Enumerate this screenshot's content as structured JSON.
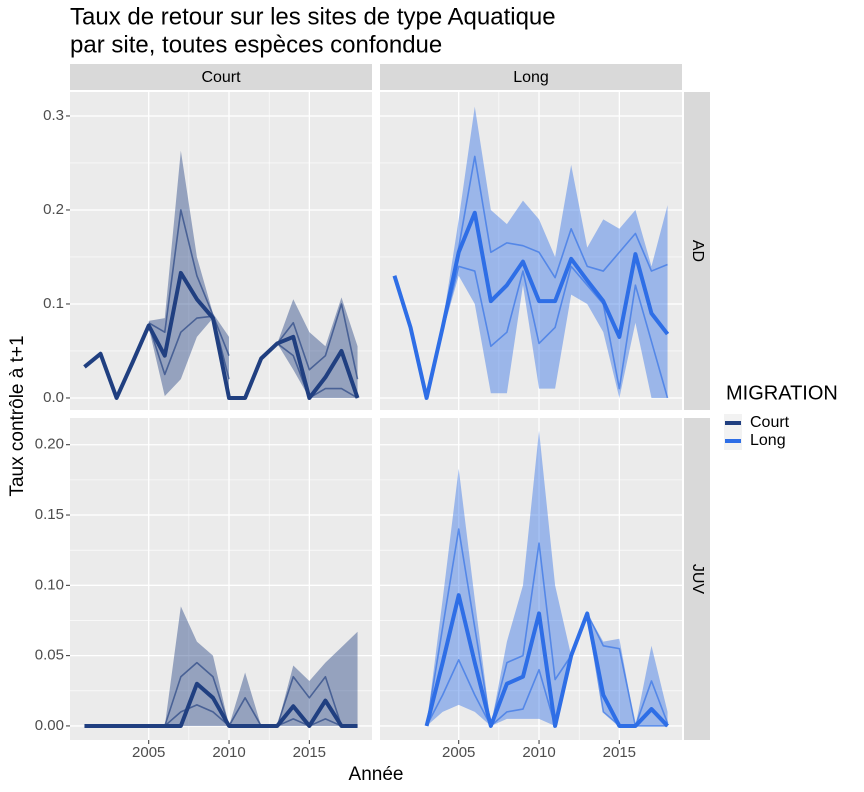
{
  "chart_data": {
    "type": "line",
    "title": [
      "Taux de retour sur les sites de type Aquatique",
      "par site, toutes espèces confondue"
    ],
    "x_label": "Année",
    "y_label": "Taux contrôle à t+1",
    "legend_title": "MIGRATION",
    "series": [
      {
        "name": "Court",
        "color": "#203F80"
      },
      {
        "name": "Long",
        "color": "#2E6EE6"
      }
    ],
    "x": [
      2001,
      2002,
      2003,
      2004,
      2005,
      2006,
      2007,
      2008,
      2009,
      2010,
      2011,
      2012,
      2013,
      2014,
      2015,
      2016,
      2017,
      2018
    ],
    "xlim": [
      2000.1,
      2018.9
    ],
    "xticks": [
      2005,
      2010,
      2015
    ],
    "rows": [
      {
        "label": "AD",
        "ylim": [
          -0.0128,
          0.3255
        ],
        "yticks": [
          {
            "value": 0,
            "label": "0.0"
          },
          0.1,
          0.2,
          0.3
        ],
        "panels": [
          {
            "values": [
              0.033,
              0.047,
              0,
              0.038,
              0.077,
              0.045,
              0.133,
              0.105,
              0.085,
              0,
              0,
              0.042,
              0.058,
              0.065,
              0,
              0.022,
              0.05,
              0
            ],
            "high": [
              null,
              null,
              null,
              null,
              0.082,
              0.085,
              0.263,
              0.15,
              0.09,
              0.065,
              null,
              null,
              0.058,
              0.105,
              0.07,
              0.055,
              0.107,
              0.055
            ],
            "low": [
              null,
              null,
              null,
              null,
              0.075,
              0.002,
              0.02,
              0.065,
              0.085,
              0,
              null,
              null,
              0.058,
              0.03,
              0,
              0,
              0,
              0
            ],
            "q3": [
              null,
              null,
              null,
              null,
              0.08,
              0.07,
              0.2,
              0.13,
              0.088,
              0.045,
              null,
              null,
              0.058,
              0.08,
              0.03,
              0.045,
              0.1,
              0.02
            ],
            "q1": [
              null,
              null,
              null,
              null,
              0.078,
              0.025,
              0.07,
              0.085,
              0.087,
              0.02,
              null,
              null,
              0.058,
              0.045,
              0,
              0.01,
              0.01,
              0
            ]
          },
          {
            "values": [
              0.13,
              0.075,
              0,
              0.075,
              0.155,
              0.197,
              0.103,
              0.12,
              0.145,
              0.103,
              0.103,
              0.148,
              0.125,
              0.103,
              0.065,
              0.153,
              0.09,
              0.068
            ],
            "high": [
              null,
              null,
              null,
              0.08,
              0.19,
              0.31,
              0.2,
              0.185,
              0.21,
              0.19,
              0.15,
              0.248,
              0.16,
              0.19,
              0.18,
              0.2,
              0.14,
              0.205
            ],
            "low": [
              null,
              null,
              null,
              0.07,
              0.13,
              0.1,
              0.005,
              0.005,
              0.12,
              0.01,
              0.01,
              0.11,
              0.1,
              0.07,
              0,
              0.08,
              0,
              0
            ],
            "q3": [
              null,
              null,
              null,
              0.078,
              0.16,
              0.257,
              0.155,
              0.165,
              0.162,
              0.155,
              0.128,
              0.18,
              0.14,
              0.135,
              0.155,
              0.175,
              0.135,
              0.142
            ],
            "q1": [
              null,
              null,
              null,
              0.072,
              0.14,
              0.135,
              0.055,
              0.07,
              0.135,
              0.058,
              0.075,
              0.14,
              0.12,
              0.1,
              0.01,
              0.12,
              0.06,
              0
            ]
          }
        ]
      },
      {
        "label": "JUV",
        "ylim": [
          -0.01,
          0.219
        ],
        "yticks": [
          {
            "value": 0,
            "label": "0.00"
          },
          {
            "value": 0.05,
            "label": "0.05"
          },
          {
            "value": 0.1,
            "label": "0.10"
          },
          {
            "value": 0.15,
            "label": "0.15"
          },
          {
            "value": 0.2,
            "label": "0.20"
          }
        ],
        "panels": [
          {
            "values": [
              0,
              0,
              0,
              0,
              0,
              0,
              0,
              0.03,
              0.02,
              0,
              0,
              0,
              0,
              0.014,
              0,
              0.018,
              0,
              0
            ],
            "high": [
              null,
              null,
              null,
              null,
              null,
              0,
              0.085,
              0.06,
              0.05,
              0,
              0.038,
              0,
              0,
              0.043,
              0.032,
              0.045,
              0.056,
              0.067
            ],
            "low": [
              null,
              null,
              null,
              null,
              null,
              0,
              0,
              0,
              0,
              0,
              0,
              0,
              0,
              0,
              0,
              0,
              0,
              0
            ],
            "q3": [
              null,
              null,
              null,
              null,
              null,
              0,
              0.035,
              0.045,
              0.035,
              0,
              0.02,
              0,
              0,
              0.035,
              0.02,
              0.035,
              0,
              0
            ],
            "q1": [
              null,
              null,
              null,
              null,
              null,
              0,
              0.01,
              0.015,
              0.01,
              0,
              0,
              0,
              0,
              0.005,
              0,
              0.005,
              0,
              0
            ]
          },
          {
            "values": [
              null,
              null,
              0,
              0.045,
              0.093,
              0.045,
              0,
              0.03,
              0.035,
              0.08,
              0,
              0.05,
              0.08,
              0.022,
              0,
              0,
              0.012,
              0
            ],
            "high": [
              null,
              null,
              0,
              0.09,
              0.183,
              0.09,
              0,
              0.06,
              0.1,
              0.21,
              0.1,
              0.05,
              0.08,
              0.06,
              0.062,
              0,
              0.057,
              0.01
            ],
            "low": [
              null,
              null,
              0,
              0.01,
              0.015,
              0.01,
              0,
              0.005,
              0.005,
              0.005,
              0,
              0.05,
              0.08,
              0.01,
              0,
              0,
              0,
              0
            ],
            "q3": [
              null,
              null,
              0,
              0.07,
              0.14,
              0.07,
              0,
              0.045,
              0.05,
              0.13,
              0.033,
              0.05,
              0.08,
              0.057,
              0.055,
              0,
              0.032,
              0.002
            ],
            "q1": [
              null,
              null,
              0,
              0.022,
              0.047,
              0.022,
              0,
              0.01,
              0.012,
              0.04,
              0,
              0.05,
              0.08,
              0.01,
              0,
              0,
              0,
              0
            ]
          }
        ]
      }
    ]
  }
}
